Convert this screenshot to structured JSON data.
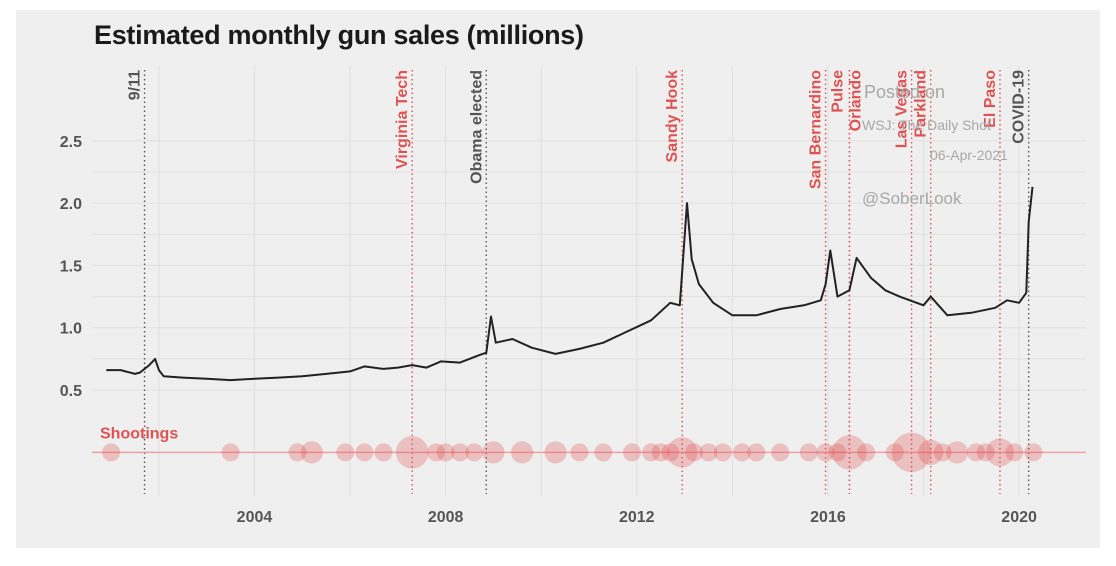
{
  "chart_data": {
    "type": "line",
    "title": "Estimated monthly gun sales (millions)",
    "xlabel": "",
    "ylabel": "",
    "xlim": [
      2000.6,
      2021.4
    ],
    "ylim": [
      -0.35,
      3.1
    ],
    "x_ticks": [
      2004,
      2008,
      2012,
      2016,
      2020
    ],
    "x_tick_labels": [
      "2004",
      "2008",
      "2012",
      "2016",
      "2020"
    ],
    "y_ticks": [
      0.5,
      1.0,
      1.5,
      2.0,
      2.5
    ],
    "y_tick_labels": [
      "0.5",
      "1.0",
      "1.5",
      "2.0",
      "2.5"
    ],
    "grid": true,
    "series": [
      {
        "color": "#222222",
        "points": [
          [
            2000.9,
            0.66
          ],
          [
            2001.2,
            0.66
          ],
          [
            2001.5,
            0.63
          ],
          [
            2001.6,
            0.64
          ],
          [
            2001.8,
            0.7
          ],
          [
            2001.92,
            0.75
          ],
          [
            2002.0,
            0.66
          ],
          [
            2002.1,
            0.61
          ],
          [
            2002.5,
            0.6
          ],
          [
            2003.0,
            0.59
          ],
          [
            2003.5,
            0.58
          ],
          [
            2004.0,
            0.59
          ],
          [
            2004.5,
            0.6
          ],
          [
            2005.0,
            0.61
          ],
          [
            2005.5,
            0.63
          ],
          [
            2006.0,
            0.65
          ],
          [
            2006.3,
            0.69
          ],
          [
            2006.7,
            0.67
          ],
          [
            2007.0,
            0.68
          ],
          [
            2007.3,
            0.7
          ],
          [
            2007.6,
            0.68
          ],
          [
            2007.9,
            0.73
          ],
          [
            2008.3,
            0.72
          ],
          [
            2008.7,
            0.78
          ],
          [
            2008.85,
            0.8
          ],
          [
            2008.95,
            1.09
          ],
          [
            2009.05,
            0.88
          ],
          [
            2009.4,
            0.91
          ],
          [
            2009.8,
            0.84
          ],
          [
            2010.3,
            0.79
          ],
          [
            2010.8,
            0.83
          ],
          [
            2011.3,
            0.88
          ],
          [
            2011.8,
            0.97
          ],
          [
            2012.3,
            1.06
          ],
          [
            2012.7,
            1.2
          ],
          [
            2012.9,
            1.18
          ],
          [
            2013.05,
            2.0
          ],
          [
            2013.15,
            1.55
          ],
          [
            2013.3,
            1.35
          ],
          [
            2013.6,
            1.2
          ],
          [
            2014.0,
            1.1
          ],
          [
            2014.5,
            1.1
          ],
          [
            2015.0,
            1.15
          ],
          [
            2015.5,
            1.18
          ],
          [
            2015.85,
            1.22
          ],
          [
            2015.95,
            1.35
          ],
          [
            2016.05,
            1.62
          ],
          [
            2016.2,
            1.25
          ],
          [
            2016.45,
            1.3
          ],
          [
            2016.6,
            1.56
          ],
          [
            2016.9,
            1.4
          ],
          [
            2017.2,
            1.3
          ],
          [
            2017.5,
            1.25
          ],
          [
            2018.0,
            1.18
          ],
          [
            2018.15,
            1.25
          ],
          [
            2018.5,
            1.1
          ],
          [
            2019.0,
            1.12
          ],
          [
            2019.5,
            1.16
          ],
          [
            2019.75,
            1.22
          ],
          [
            2020.0,
            1.2
          ],
          [
            2020.15,
            1.28
          ],
          [
            2020.2,
            1.85
          ],
          [
            2020.28,
            2.13
          ]
        ]
      }
    ],
    "events": [
      {
        "label": "9/11",
        "x": 2001.7,
        "color": "#555555"
      },
      {
        "label": "Virginia Tech",
        "x": 2007.3,
        "color": "#e05252"
      },
      {
        "label": "Obama elected",
        "x": 2008.85,
        "color": "#555555"
      },
      {
        "label": "Sandy Hook",
        "x": 2012.95,
        "color": "#e05252"
      },
      {
        "label": "San Bernardino",
        "x": 2015.95,
        "color": "#e05252"
      },
      {
        "label": "Pulse",
        "x": 2016.45,
        "color": "#e05252"
      },
      {
        "label": "Orlando",
        "x": 2016.45,
        "color": "#e05252"
      },
      {
        "label": "Las Vegas",
        "x": 2017.75,
        "color": "#e05252"
      },
      {
        "label": "Parkland",
        "x": 2018.15,
        "color": "#e05252"
      },
      {
        "label": "El Paso",
        "x": 2019.6,
        "color": "#e05252"
      },
      {
        "label": "COVID-19",
        "x": 2020.2,
        "color": "#555555"
      }
    ],
    "shootings": {
      "label": "Shootings",
      "color": "#e05252",
      "y": 0,
      "points": [
        [
          2001.0,
          1
        ],
        [
          2003.5,
          1
        ],
        [
          2004.9,
          1
        ],
        [
          2005.2,
          2
        ],
        [
          2005.9,
          1
        ],
        [
          2006.3,
          1
        ],
        [
          2006.7,
          1
        ],
        [
          2007.3,
          6
        ],
        [
          2007.8,
          1
        ],
        [
          2008.0,
          1
        ],
        [
          2008.3,
          1
        ],
        [
          2008.6,
          1
        ],
        [
          2009.0,
          2
        ],
        [
          2009.6,
          2
        ],
        [
          2010.3,
          2
        ],
        [
          2010.8,
          1
        ],
        [
          2011.3,
          1
        ],
        [
          2011.9,
          1
        ],
        [
          2012.3,
          1
        ],
        [
          2012.5,
          1
        ],
        [
          2012.7,
          1
        ],
        [
          2012.95,
          5
        ],
        [
          2013.2,
          1
        ],
        [
          2013.5,
          1
        ],
        [
          2013.8,
          1
        ],
        [
          2014.2,
          1
        ],
        [
          2014.5,
          1
        ],
        [
          2015.0,
          1
        ],
        [
          2015.6,
          1
        ],
        [
          2015.95,
          1
        ],
        [
          2016.2,
          1
        ],
        [
          2016.45,
          7
        ],
        [
          2016.8,
          1
        ],
        [
          2017.4,
          1
        ],
        [
          2017.75,
          10
        ],
        [
          2018.15,
          3
        ],
        [
          2018.4,
          1
        ],
        [
          2018.7,
          2
        ],
        [
          2019.1,
          1
        ],
        [
          2019.3,
          1
        ],
        [
          2019.6,
          4
        ],
        [
          2019.9,
          1
        ],
        [
          2020.3,
          1
        ]
      ]
    }
  },
  "watermark": {
    "line1": "Posted on",
    "line2": "WSJ: The Daily Shot",
    "line3": "06-Apr-2021",
    "line4": "@SoberLook"
  }
}
